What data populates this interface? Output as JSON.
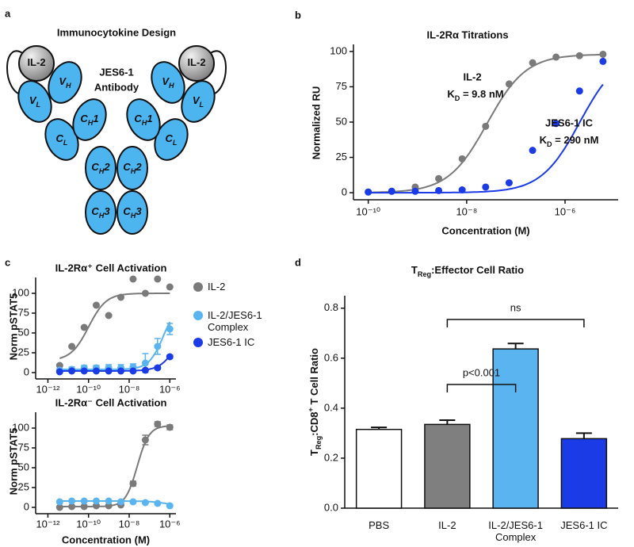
{
  "diagram": {
    "panel_label": "a",
    "title": "Immunocytokine Design",
    "antibody_label": [
      "JES6-1",
      "Antibody"
    ],
    "domains": [
      {
        "label": [
          "IL-2"
        ]
      },
      {
        "label": [
          "V",
          {
            "text": "L",
            "shift": "sub"
          }
        ]
      },
      {
        "label": [
          "V",
          {
            "text": "H",
            "shift": "sub"
          }
        ]
      },
      {
        "label": [
          "C",
          {
            "text": "L",
            "shift": "sub"
          }
        ]
      },
      {
        "label": [
          "C",
          {
            "text": "H",
            "shift": "sub"
          },
          "1"
        ]
      },
      {
        "label": [
          "C",
          {
            "text": "H",
            "shift": "sub"
          },
          "2"
        ]
      },
      {
        "label": [
          "C",
          {
            "text": "H",
            "shift": "sub"
          },
          "3"
        ]
      },
      {
        "label": [
          "IL-2"
        ]
      },
      {
        "label": [
          "V",
          {
            "text": "H",
            "shift": "sub"
          }
        ]
      },
      {
        "label": [
          "V",
          {
            "text": "L",
            "shift": "sub"
          }
        ]
      },
      {
        "label": [
          "C",
          {
            "text": "H",
            "shift": "sub"
          },
          "1"
        ]
      },
      {
        "label": [
          "C",
          {
            "text": "L",
            "shift": "sub"
          }
        ]
      },
      {
        "label": [
          "C",
          {
            "text": "H",
            "shift": "sub"
          },
          "2"
        ]
      },
      {
        "label": [
          "C",
          {
            "text": "H",
            "shift": "sub"
          },
          "3"
        ]
      }
    ]
  },
  "chart_data": [
    {
      "type": "dose-response",
      "panel_label": "b",
      "title": "IL-2Rα Titrations",
      "xlabel": "Concentration (M)",
      "ylabel": "Normalized RU",
      "xscale": "log",
      "xlim": [
        5e-11,
        1.2e-05
      ],
      "xticks": [
        {
          "value": 1e-10,
          "label": "10⁻¹⁰"
        },
        {
          "value": 1e-08,
          "label": "10⁻⁸"
        },
        {
          "value": 1e-06,
          "label": "10⁻⁶"
        }
      ],
      "ylim": [
        -5,
        105
      ],
      "yticks": [
        0,
        25,
        50,
        75,
        100
      ],
      "legend": "inline",
      "x": [
        1e-10,
        3e-10,
        9e-10,
        2.7e-09,
        8.1e-09,
        2.43e-08,
        7.29e-08,
        2.19e-07,
        6.56e-07,
        1.97e-06,
        5.9e-06
      ],
      "series": [
        {
          "name": "IL-2",
          "color": "#7a7a7a",
          "values": [
            0.5,
            1,
            4,
            10,
            24,
            47,
            77,
            92,
            96,
            97,
            98
          ],
          "fit": {
            "bottom": 0,
            "top": 98,
            "ec50": 2.6e-08,
            "hill": 1.1
          },
          "annotation": [
            "K",
            {
              "text": "D",
              "shift": "sub"
            },
            " = 9.8 nM"
          ]
        },
        {
          "name": "JES6-1 IC",
          "color": "#1a3be6",
          "values": [
            0.5,
            1,
            1,
            1.5,
            2,
            4,
            7,
            30,
            49,
            72,
            93
          ],
          "fit": {
            "bottom": 0,
            "top": 100,
            "ec50": 2e-06,
            "hill": 1.1
          },
          "annotation": [
            "K",
            {
              "text": "D",
              "shift": "sub"
            },
            " = 290 nM"
          ]
        }
      ]
    },
    {
      "type": "dose-response",
      "panel_label": "c",
      "title": "IL-2Rα⁺ Cell Activation",
      "ylabel": "Norm pSTAT5",
      "xscale": "log",
      "xlim": [
        2.5e-13,
        2e-06
      ],
      "xticks": [
        {
          "value": 1e-12,
          "label": "10⁻¹²"
        },
        {
          "value": 1e-10,
          "label": "10⁻¹⁰"
        },
        {
          "value": 1e-08,
          "label": "10⁻⁸"
        },
        {
          "value": 1e-06,
          "label": "10⁻⁶"
        }
      ],
      "ylim": [
        -8,
        120
      ],
      "yticks": [
        0,
        25,
        50,
        75,
        100
      ],
      "legend": "right",
      "x": [
        3.8e-12,
        1.5e-11,
        6.1e-11,
        2.4e-10,
        9.8e-10,
        3.9e-09,
        1.56e-08,
        6.25e-08,
        2.5e-07,
        1e-06
      ],
      "series": [
        {
          "name": "IL-2",
          "color": "#7a7a7a",
          "values": [
            9,
            33,
            57,
            85,
            72,
            95,
            118,
            100,
            118,
            108
          ],
          "fit": {
            "bottom": 15,
            "top": 100,
            "ec50": 1e-10,
            "hill": 1
          }
        },
        {
          "name": "IL-2/JES6-1 Complex",
          "color": "#5ab4f0",
          "values": [
            3,
            4,
            6,
            6,
            6,
            6,
            7,
            12,
            33,
            55
          ],
          "errors": [
            2,
            3,
            3,
            3,
            4,
            4,
            4,
            12,
            10,
            7
          ],
          "fit": {
            "bottom": 4,
            "top": 90,
            "ec50": 5e-07,
            "hill": 1.2
          }
        },
        {
          "name": "JES6-1 IC",
          "color": "#1a3be6",
          "values": [
            1,
            2,
            2,
            2,
            2,
            2,
            2,
            3,
            6,
            20
          ],
          "errors": [
            1,
            1,
            1,
            1,
            1,
            1,
            1,
            1,
            2,
            2
          ],
          "fit": {
            "bottom": 2,
            "top": 100,
            "ec50": 4e-06,
            "hill": 1
          }
        }
      ]
    },
    {
      "type": "dose-response",
      "title": "IL-2Rα⁻ Cell Activation",
      "xlabel": "Concentration (M)",
      "ylabel": "Norm pSTAT5",
      "xscale": "log",
      "xlim": [
        2.5e-13,
        2e-06
      ],
      "xticks": [
        {
          "value": 1e-12,
          "label": "10⁻¹²"
        },
        {
          "value": 1e-10,
          "label": "10⁻¹⁰"
        },
        {
          "value": 1e-08,
          "label": "10⁻⁸"
        },
        {
          "value": 1e-06,
          "label": "10⁻⁶"
        }
      ],
      "ylim": [
        -8,
        120
      ],
      "yticks": [
        0,
        25,
        50,
        75,
        100
      ],
      "x": [
        3.8e-12,
        1.5e-11,
        6.1e-11,
        2.4e-10,
        9.8e-10,
        3.9e-09,
        1.56e-08,
        6.25e-08,
        2.5e-07,
        1e-06
      ],
      "series": [
        {
          "color": "#7a7a7a",
          "values": [
            0,
            1,
            1,
            2,
            2,
            3,
            30,
            85,
            105,
            101
          ],
          "errors": [
            1,
            1,
            1,
            1,
            1,
            1,
            3,
            6,
            3,
            3
          ],
          "fit": {
            "bottom": 1,
            "top": 103,
            "ec50": 2.5e-08,
            "hill": 1.5
          }
        },
        {
          "color": "#5ab4f0",
          "values": [
            7,
            8,
            8,
            8,
            8,
            7,
            7,
            6,
            5,
            2
          ],
          "errors": [
            1,
            1,
            1,
            1,
            1,
            1,
            1,
            1,
            1,
            1
          ],
          "fit": {
            "bottom": 8,
            "top": 0,
            "ec50": 1e-06,
            "hill": 1
          }
        }
      ]
    },
    {
      "type": "bar",
      "panel_label": "d",
      "title": [
        "T",
        {
          "text": "Reg",
          "shift": "sub"
        },
        ":Effector Cell Ratio"
      ],
      "ylabel": [
        "T",
        {
          "text": "Reg",
          "shift": "sub"
        },
        ":CD8",
        {
          "text": "+",
          "shift": "super"
        },
        " T Cell Ratio"
      ],
      "categories": [
        "PBS",
        "IL-2",
        "IL-2/JES6-1 Complex",
        "JES6-1 IC"
      ],
      "values": [
        0.315,
        0.335,
        0.637,
        0.278
      ],
      "errors": [
        0.008,
        0.017,
        0.022,
        0.022
      ],
      "colors": [
        "#ffffff",
        "#7f7f7f",
        "#5ab4f0",
        "#1a3be6"
      ],
      "ylim": [
        0,
        0.85
      ],
      "yticks": [
        {
          "value": 0,
          "label": "0.0"
        },
        0.2,
        0.4,
        0.6,
        0.8
      ],
      "annotations": [
        {
          "text": "p<0.001",
          "between": [
            "IL-2",
            "IL-2/JES6-1 Complex"
          ]
        },
        {
          "text": "ns",
          "between": [
            "IL-2",
            "JES6-1 IC"
          ]
        }
      ]
    }
  ]
}
